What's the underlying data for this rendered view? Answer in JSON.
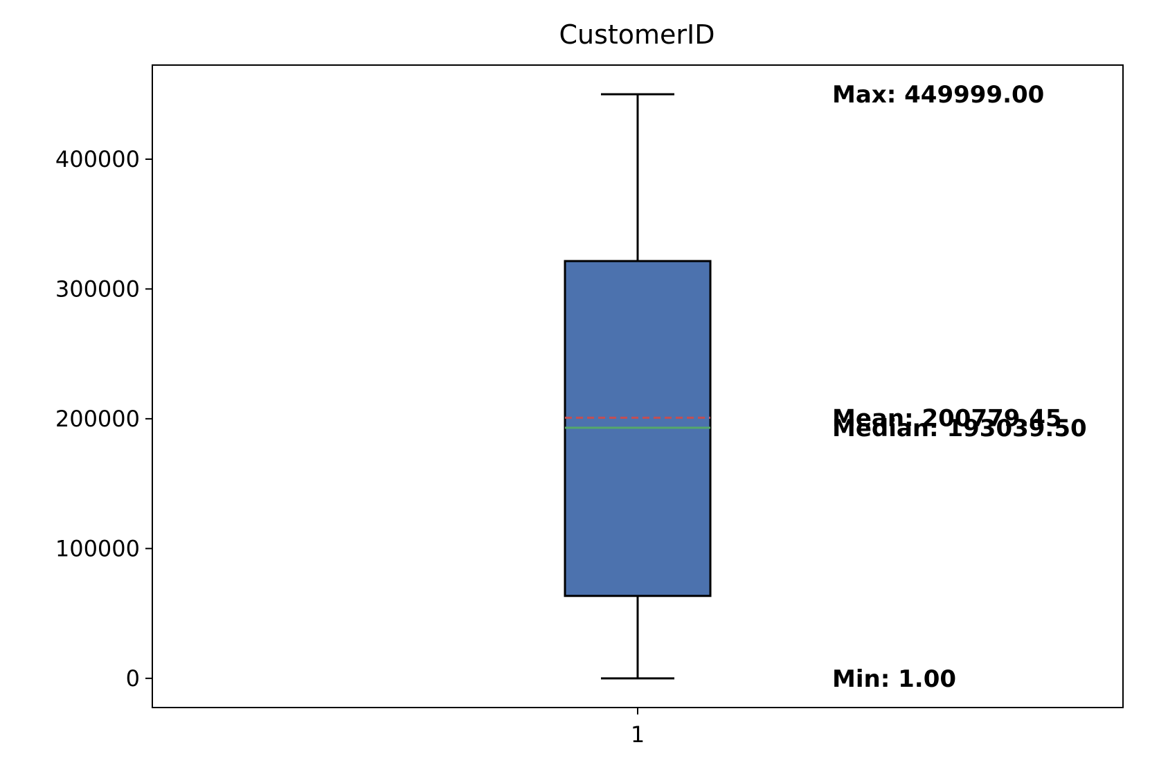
{
  "chart_data": {
    "type": "box",
    "title": "CustomerID",
    "xlabel": "",
    "ylabel": "",
    "categories": [
      "1"
    ],
    "yticks": [
      0,
      100000,
      200000,
      300000,
      400000
    ],
    "ytick_labels": [
      "0",
      "100000",
      "200000",
      "300000",
      "400000"
    ],
    "ylim": [
      -22500,
      472500
    ],
    "grid": false,
    "box": {
      "min": 1.0,
      "q1": 63500,
      "median": 193039.5,
      "mean": 200779.45,
      "q3": 321500,
      "max": 449999.0
    },
    "colors": {
      "box_fill": "#4c72ae",
      "median_line": "#55a868",
      "mean_line": "#c44e52",
      "edge": "#000000"
    },
    "annotations": [
      {
        "key": "max",
        "text": "Max: 449999.00",
        "value": 449999.0
      },
      {
        "key": "median",
        "text": "Median: 193039.50",
        "value": 193039.5
      },
      {
        "key": "mean",
        "text": "Mean: 200779.45",
        "value": 200779.45
      },
      {
        "key": "min",
        "text": "Min: 1.00",
        "value": 1.0
      }
    ]
  }
}
